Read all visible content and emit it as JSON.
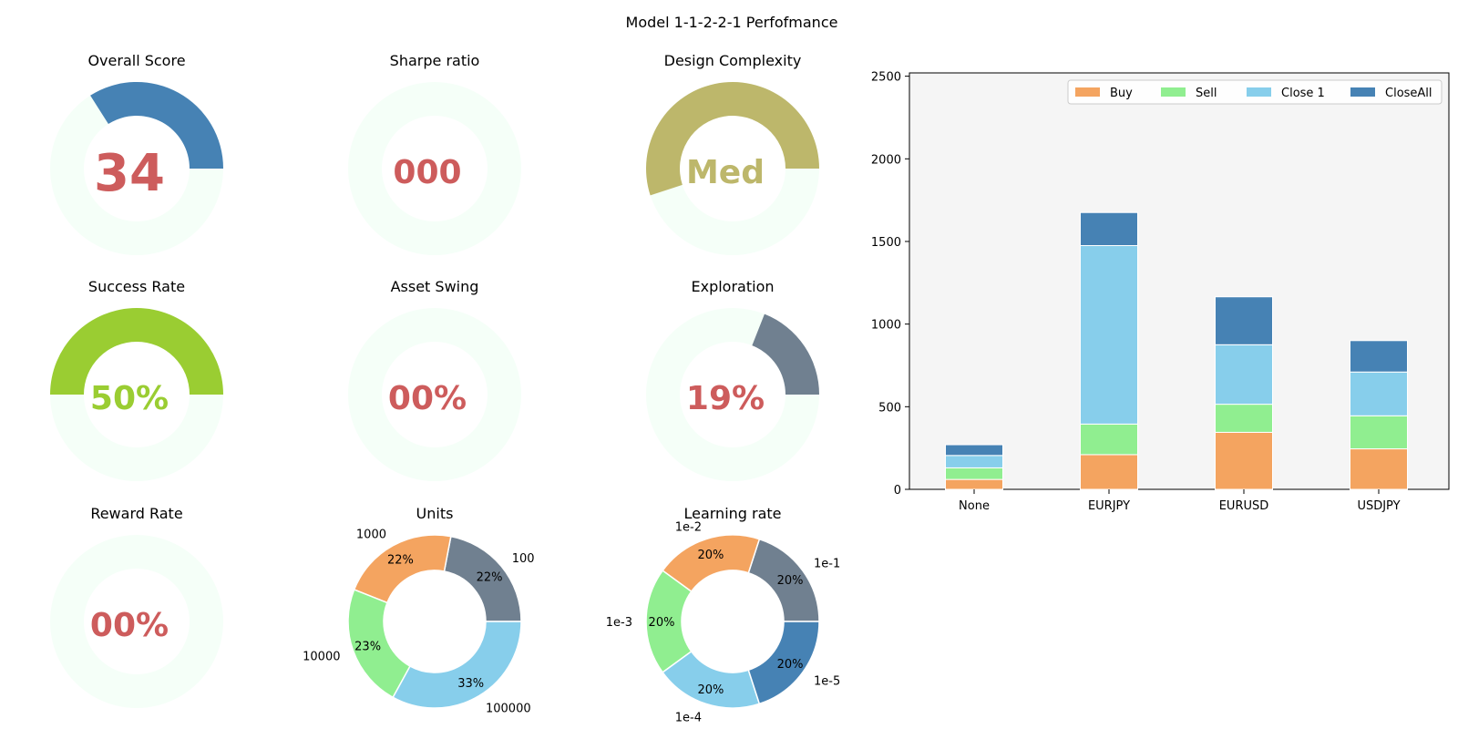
{
  "title": "Model 1-1-2-2-1 Perfofmance",
  "colors": {
    "track": "#f5fff8",
    "text_red": "#cd5c5c",
    "steelblue": "#4682b4",
    "darkkhaki": "#bdb76b",
    "yellowgreen": "#9acd32",
    "slategray": "#708090",
    "sandybrown": "#f4a460",
    "lightgreen": "#90ee90",
    "skyblue": "#87ceeb",
    "panel_bg": "#f5f5f5"
  },
  "chart_data": [
    {
      "type": "donut-gauge",
      "title": "Overall Score",
      "value_text": "34",
      "fraction": 0.34,
      "color": "steelblue",
      "text_color": "text_red",
      "text_size": "large"
    },
    {
      "type": "donut-gauge",
      "title": "Sharpe ratio",
      "value_text": "000",
      "fraction": 0.0,
      "color": "steelblue",
      "text_color": "text_red",
      "text_size": "medium"
    },
    {
      "type": "donut-gauge",
      "title": "Design Complexity",
      "value_text": "Med",
      "fraction": 0.55,
      "color": "darkkhaki",
      "text_color": "darkkhaki",
      "text_size": "medium"
    },
    {
      "type": "donut-gauge",
      "title": "Success Rate",
      "value_text": "50%",
      "fraction": 0.5,
      "color": "yellowgreen",
      "text_color": "yellowgreen",
      "text_size": "medium"
    },
    {
      "type": "donut-gauge",
      "title": "Asset Swing",
      "value_text": "00%",
      "fraction": 0.0,
      "color": "steelblue",
      "text_color": "text_red",
      "text_size": "medium"
    },
    {
      "type": "donut-gauge",
      "title": "Exploration",
      "value_text": "19%",
      "fraction": 0.19,
      "color": "slategray",
      "text_color": "text_red",
      "text_size": "medium"
    },
    {
      "type": "donut-gauge",
      "title": "Reward Rate",
      "value_text": "00%",
      "fraction": 0.0,
      "color": "steelblue",
      "text_color": "text_red",
      "text_size": "medium"
    },
    {
      "type": "pie",
      "title": "Units",
      "slices": [
        {
          "label": "100",
          "percent": 22,
          "pct_text": "22%",
          "color": "slategray"
        },
        {
          "label": "1000",
          "percent": 22,
          "pct_text": "22%",
          "color": "sandybrown"
        },
        {
          "label": "10000",
          "percent": 23,
          "pct_text": "23%",
          "color": "lightgreen"
        },
        {
          "label": "100000",
          "percent": 33,
          "pct_text": "33%",
          "color": "skyblue"
        }
      ]
    },
    {
      "type": "pie",
      "title": "Learning rate",
      "slices": [
        {
          "label": "1e-1",
          "percent": 20,
          "pct_text": "20%",
          "color": "slategray"
        },
        {
          "label": "1e-2",
          "percent": 20,
          "pct_text": "20%",
          "color": "sandybrown"
        },
        {
          "label": "1e-3",
          "percent": 20,
          "pct_text": "20%",
          "color": "lightgreen"
        },
        {
          "label": "1e-4",
          "percent": 20,
          "pct_text": "20%",
          "color": "skyblue"
        },
        {
          "label": "1e-5",
          "percent": 20,
          "pct_text": "20%",
          "color": "steelblue"
        }
      ]
    },
    {
      "type": "bar",
      "stacked": true,
      "categories": [
        "None",
        "EURJPY",
        "EURUSD",
        "USDJPY"
      ],
      "series": [
        {
          "name": "Buy",
          "color": "sandybrown",
          "values": [
            60,
            210,
            345,
            245
          ]
        },
        {
          "name": "Sell",
          "color": "lightgreen",
          "values": [
            70,
            185,
            170,
            200
          ]
        },
        {
          "name": "Close 1",
          "color": "skyblue",
          "values": [
            75,
            1080,
            360,
            265
          ]
        },
        {
          "name": "CloseAll",
          "color": "steelblue",
          "values": [
            65,
            200,
            290,
            190
          ]
        }
      ],
      "ylim": [
        0,
        2520
      ],
      "yticks": [
        "0",
        "500",
        "1000",
        "1500",
        "2000",
        "2500"
      ],
      "ytick_values": [
        0,
        500,
        1000,
        1500,
        2000,
        2500
      ],
      "legend": "top-right",
      "grid": false
    }
  ]
}
